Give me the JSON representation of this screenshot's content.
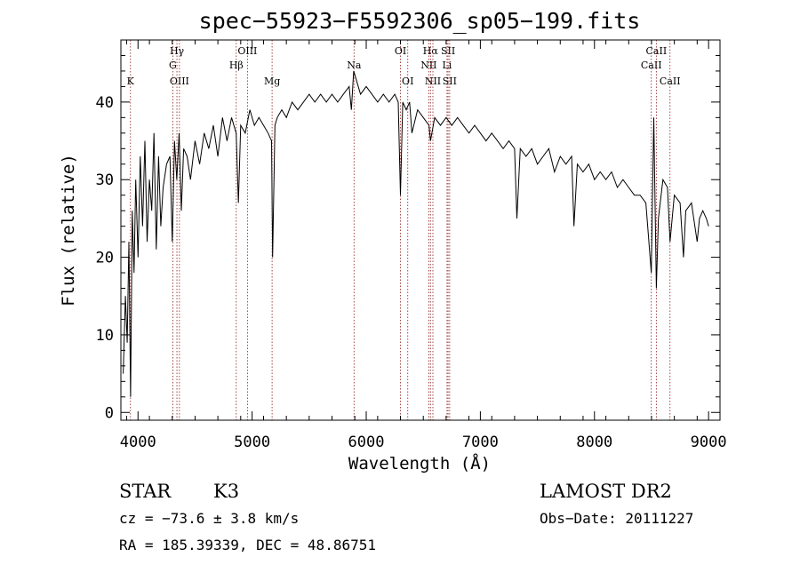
{
  "chart_data": {
    "type": "line",
    "title": "spec−55923−F5592306_sp05−199.fits",
    "xlabel": "Wavelength (Å)",
    "ylabel": "Flux (relative)",
    "xlim": [
      3850,
      9100
    ],
    "ylim": [
      -1,
      48
    ],
    "xticks": [
      4000,
      5000,
      6000,
      7000,
      8000,
      9000
    ],
    "xtick_labels": [
      "4000",
      "5000",
      "6000",
      "7000",
      "8000",
      "9000"
    ],
    "yticks": [
      0,
      10,
      20,
      30,
      40
    ],
    "ytick_labels": [
      "0",
      "10",
      "20",
      "30",
      "40"
    ],
    "grid": false,
    "line_color": "#000000",
    "marker_color": "#8b1a1a",
    "series": [
      {
        "x": [
          3870,
          3890,
          3905,
          3920,
          3935,
          3950,
          3965,
          3980,
          4000,
          4020,
          4040,
          4060,
          4080,
          4100,
          4120,
          4140,
          4160,
          4180,
          4200,
          4220,
          4250,
          4280,
          4300,
          4320,
          4340,
          4360,
          4380,
          4400,
          4430,
          4460,
          4500,
          4540,
          4580,
          4620,
          4660,
          4700,
          4740,
          4780,
          4820,
          4860,
          4880,
          4900,
          4940,
          4980,
          5020,
          5060,
          5100,
          5140,
          5170,
          5180,
          5200,
          5220,
          5260,
          5300,
          5350,
          5400,
          5450,
          5500,
          5550,
          5600,
          5650,
          5700,
          5750,
          5800,
          5850,
          5870,
          5890,
          5910,
          5950,
          6000,
          6050,
          6100,
          6150,
          6200,
          6250,
          6280,
          6300,
          6320,
          6350,
          6380,
          6400,
          6450,
          6500,
          6550,
          6563,
          6600,
          6650,
          6700,
          6750,
          6800,
          6850,
          6900,
          6950,
          7000,
          7050,
          7100,
          7150,
          7200,
          7250,
          7300,
          7320,
          7350,
          7400,
          7450,
          7500,
          7550,
          7600,
          7650,
          7700,
          7750,
          7800,
          7820,
          7850,
          7900,
          7950,
          8000,
          8050,
          8100,
          8150,
          8200,
          8250,
          8300,
          8350,
          8400,
          8450,
          8498,
          8520,
          8542,
          8560,
          8600,
          8640,
          8662,
          8700,
          8750,
          8780,
          8800,
          8850,
          8900,
          8920,
          8950,
          8980,
          9000
        ],
        "y": [
          5,
          15,
          9,
          22,
          2,
          26,
          18,
          30,
          20,
          33,
          24,
          35,
          22,
          30,
          26,
          36,
          21,
          33,
          24,
          29,
          32,
          33,
          22,
          35,
          30,
          36,
          26,
          34,
          33,
          30,
          35,
          32,
          36,
          34,
          37,
          33,
          38,
          35,
          38,
          36,
          27,
          37,
          36,
          39,
          37,
          38,
          37,
          36,
          35,
          20,
          37,
          38,
          39,
          38,
          40,
          39,
          40,
          41,
          40,
          41,
          40,
          41,
          40,
          41,
          42,
          39,
          44,
          43,
          41,
          42,
          41,
          40,
          41,
          40,
          41,
          40,
          28,
          40,
          39,
          40,
          36,
          39,
          38,
          37,
          35,
          38,
          37,
          38,
          37,
          38,
          37,
          36,
          37,
          36,
          35,
          36,
          35,
          34,
          35,
          34,
          25,
          34,
          33,
          34,
          32,
          33,
          34,
          31,
          33,
          32,
          33,
          24,
          32,
          31,
          32,
          30,
          31,
          30,
          31,
          29,
          30,
          29,
          28,
          28,
          27,
          18,
          38,
          16,
          25,
          30,
          29,
          22,
          28,
          27,
          20,
          26,
          27,
          22,
          25,
          26,
          25,
          24
        ]
      }
    ],
    "line_markers": [
      {
        "label": "K",
        "x": 3934,
        "row": 3
      },
      {
        "label": "Hγ",
        "x": 4341,
        "row": 1
      },
      {
        "label": "G",
        "x": 4305,
        "row": 2
      },
      {
        "label": "OIII",
        "x": 4363,
        "row": 3
      },
      {
        "label": "OIII",
        "x": 4959,
        "row": 1
      },
      {
        "label": "Hβ",
        "x": 4861,
        "row": 2
      },
      {
        "label": "Mg",
        "x": 5175,
        "row": 3
      },
      {
        "label": "Na",
        "x": 5893,
        "row": 2
      },
      {
        "label": "OI",
        "x": 6300,
        "row": 1
      },
      {
        "label": "OI",
        "x": 6364,
        "row": 3
      },
      {
        "label": "Hα",
        "x": 6563,
        "row": 1
      },
      {
        "label": "SII",
        "x": 6717,
        "row": 1
      },
      {
        "label": "NII",
        "x": 6548,
        "row": 2
      },
      {
        "label": "Li",
        "x": 6708,
        "row": 2
      },
      {
        "label": "NII",
        "x": 6584,
        "row": 3
      },
      {
        "label": "SII",
        "x": 6731,
        "row": 3
      },
      {
        "label": "CaII",
        "x": 8542,
        "row": 1
      },
      {
        "label": "CaII",
        "x": 8498,
        "row": 2
      },
      {
        "label": "CaII",
        "x": 8662,
        "row": 3
      }
    ]
  },
  "info": {
    "object_class": "STAR",
    "subclass": "K3",
    "survey": "LAMOST DR2",
    "cz": "cz = −73.6 ± 3.8 km/s",
    "obs_date": "Obs−Date: 20111227",
    "coords": "RA = 185.39339, DEC =  48.86751"
  }
}
